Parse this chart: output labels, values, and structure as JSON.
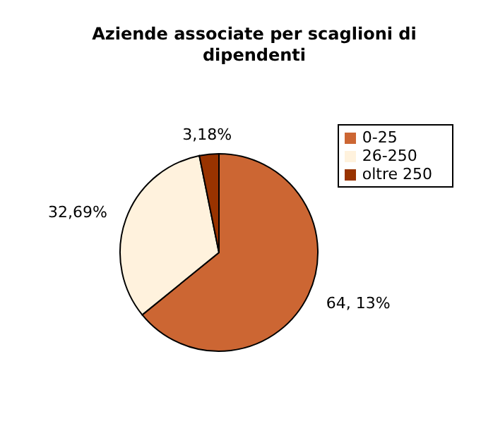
{
  "chart_data": {
    "type": "pie",
    "title": "Aziende associate per scaglioni di dipendenti",
    "categories": [
      "0-25",
      "26-250",
      "oltre 250"
    ],
    "values": [
      64.13,
      32.69,
      3.18
    ],
    "value_labels": [
      "64, 13%",
      "32,69%",
      "3,18%"
    ],
    "colors": [
      "#cc6633",
      "#fff2dd",
      "#993300"
    ],
    "legend": "right"
  }
}
